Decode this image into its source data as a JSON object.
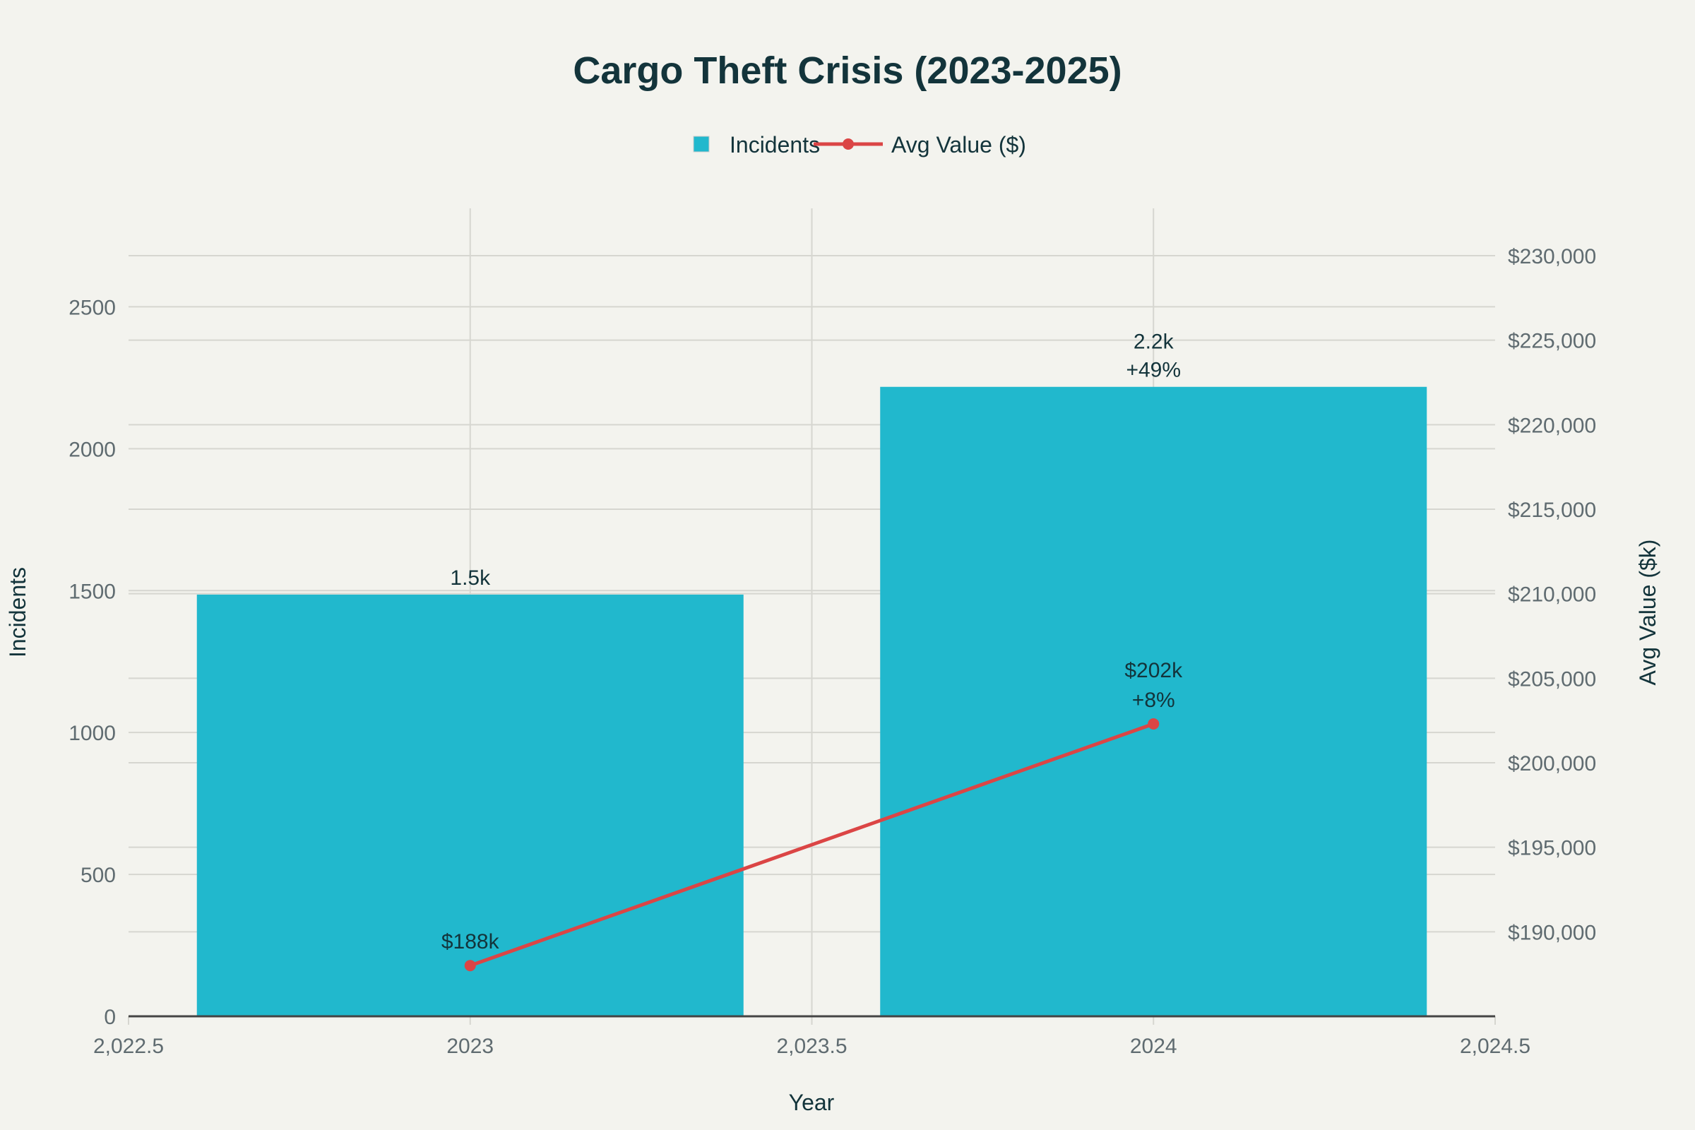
{
  "chart_data": {
    "type": "bar+line",
    "title": "Cargo Theft Crisis (2023-2025)",
    "xlabel": "Year",
    "ylabel": "Incidents",
    "y2label": "Avg Value ($k)",
    "x": [
      2023,
      2024
    ],
    "xlim": [
      2022.5,
      2024.5
    ],
    "xticks": [
      "2,022.5",
      "2023",
      "2,023.5",
      "2024",
      "2,024.5"
    ],
    "xtick_values": [
      2022.5,
      2023,
      2023.5,
      2024,
      2024.5
    ],
    "ylim": [
      0,
      2847
    ],
    "yticks": [
      0,
      500,
      1000,
      1500,
      2000,
      2500
    ],
    "y2lim": [
      185000,
      232800
    ],
    "y2ticks": [
      190000,
      195000,
      200000,
      205000,
      210000,
      215000,
      220000,
      225000,
      230000
    ],
    "y2tick_labels": [
      "$190,000",
      "$195,000",
      "$200,000",
      "$205,000",
      "$210,000",
      "$215,000",
      "$220,000",
      "$225,000",
      "$230,000"
    ],
    "grid": true,
    "legend": {
      "placement": "top-center",
      "entries": [
        "Incidents",
        "Avg Value ($)"
      ]
    },
    "series": [
      {
        "name": "Incidents",
        "type": "bar",
        "axis": "y",
        "color": "#21b8cd",
        "values": [
          1486,
          2218
        ],
        "labels": [
          [
            "1.5k"
          ],
          [
            "2.2k",
            "+49%"
          ]
        ]
      },
      {
        "name": "Avg Value ($)",
        "type": "line",
        "axis": "y2",
        "color": "#db4545",
        "values": [
          188000,
          202300
        ],
        "labels": [
          [
            "$188k"
          ],
          [
            "$202k",
            "+8%"
          ]
        ]
      }
    ]
  }
}
